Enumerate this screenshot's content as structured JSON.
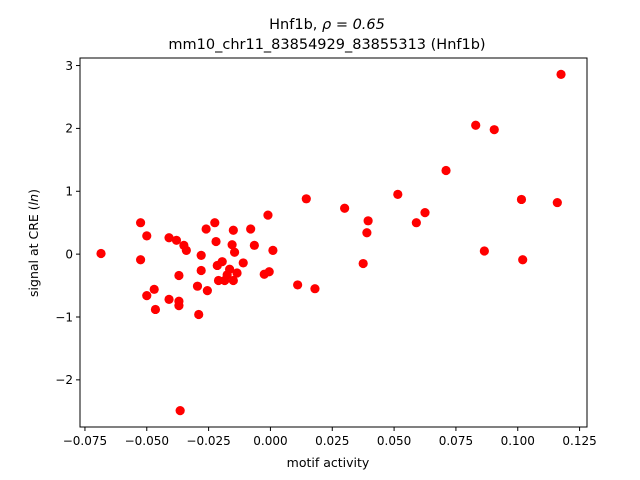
{
  "chart_data": {
    "type": "scatter",
    "title_line1": "Hnf1b, ",
    "title_rho": "ρ = 0.65",
    "title_line2": "mm10_chr11_83854929_83855313 (Hnf1b)",
    "xlabel": "motif activity",
    "ylabel_prefix": "signal at CRE (",
    "ylabel_italic": "ln",
    "ylabel_suffix": ")",
    "xlim": [
      -0.077,
      0.128
    ],
    "ylim": [
      -2.75,
      3.12
    ],
    "xticks": [
      {
        "value": -0.075,
        "label": "−0.075"
      },
      {
        "value": -0.05,
        "label": "−0.050"
      },
      {
        "value": -0.025,
        "label": "−0.025"
      },
      {
        "value": 0.0,
        "label": "0.000"
      },
      {
        "value": 0.025,
        "label": "0.025"
      },
      {
        "value": 0.05,
        "label": "0.050"
      },
      {
        "value": 0.075,
        "label": "0.075"
      },
      {
        "value": 0.1,
        "label": "0.100"
      },
      {
        "value": 0.125,
        "label": "0.125"
      }
    ],
    "yticks": [
      {
        "value": -2,
        "label": "−2"
      },
      {
        "value": -1,
        "label": "−1"
      },
      {
        "value": 0,
        "label": "0"
      },
      {
        "value": 1,
        "label": "1"
      },
      {
        "value": 2,
        "label": "2"
      },
      {
        "value": 3,
        "label": "3"
      }
    ],
    "marker_color": "#ff0000",
    "points": [
      {
        "x": -0.0685,
        "y": 0.01
      },
      {
        "x": -0.0525,
        "y": 0.5
      },
      {
        "x": -0.0525,
        "y": -0.09
      },
      {
        "x": -0.05,
        "y": 0.29
      },
      {
        "x": -0.05,
        "y": -0.66
      },
      {
        "x": -0.047,
        "y": -0.56
      },
      {
        "x": -0.0465,
        "y": -0.88
      },
      {
        "x": -0.041,
        "y": 0.26
      },
      {
        "x": -0.041,
        "y": -0.72
      },
      {
        "x": -0.038,
        "y": 0.22
      },
      {
        "x": -0.037,
        "y": -0.34
      },
      {
        "x": -0.037,
        "y": -0.75
      },
      {
        "x": -0.037,
        "y": -0.82
      },
      {
        "x": -0.0365,
        "y": -2.49
      },
      {
        "x": -0.035,
        "y": 0.14
      },
      {
        "x": -0.034,
        "y": 0.06
      },
      {
        "x": -0.0295,
        "y": -0.51
      },
      {
        "x": -0.029,
        "y": -0.96
      },
      {
        "x": -0.028,
        "y": -0.26
      },
      {
        "x": -0.028,
        "y": -0.02
      },
      {
        "x": -0.026,
        "y": 0.4
      },
      {
        "x": -0.0255,
        "y": -0.58
      },
      {
        "x": -0.0225,
        "y": 0.5
      },
      {
        "x": -0.022,
        "y": 0.2
      },
      {
        "x": -0.0215,
        "y": -0.18
      },
      {
        "x": -0.021,
        "y": -0.42
      },
      {
        "x": -0.0195,
        "y": -0.12
      },
      {
        "x": -0.0185,
        "y": -0.42
      },
      {
        "x": -0.0175,
        "y": -0.33
      },
      {
        "x": -0.0165,
        "y": -0.24
      },
      {
        "x": -0.0155,
        "y": 0.15
      },
      {
        "x": -0.015,
        "y": 0.38
      },
      {
        "x": -0.015,
        "y": -0.42
      },
      {
        "x": -0.0145,
        "y": 0.03
      },
      {
        "x": -0.0135,
        "y": -0.3
      },
      {
        "x": -0.011,
        "y": -0.14
      },
      {
        "x": -0.008,
        "y": 0.4
      },
      {
        "x": -0.0065,
        "y": 0.14
      },
      {
        "x": -0.0025,
        "y": -0.32
      },
      {
        "x": -0.001,
        "y": 0.62
      },
      {
        "x": -0.0005,
        "y": -0.28
      },
      {
        "x": 0.001,
        "y": 0.06
      },
      {
        "x": 0.011,
        "y": -0.49
      },
      {
        "x": 0.0145,
        "y": 0.88
      },
      {
        "x": 0.018,
        "y": -0.55
      },
      {
        "x": 0.03,
        "y": 0.73
      },
      {
        "x": 0.0375,
        "y": -0.15
      },
      {
        "x": 0.039,
        "y": 0.34
      },
      {
        "x": 0.0395,
        "y": 0.53
      },
      {
        "x": 0.0515,
        "y": 0.95
      },
      {
        "x": 0.059,
        "y": 0.5
      },
      {
        "x": 0.0625,
        "y": 0.66
      },
      {
        "x": 0.071,
        "y": 1.33
      },
      {
        "x": 0.083,
        "y": 2.05
      },
      {
        "x": 0.0865,
        "y": 0.05
      },
      {
        "x": 0.0905,
        "y": 1.98
      },
      {
        "x": 0.1015,
        "y": 0.87
      },
      {
        "x": 0.102,
        "y": -0.09
      },
      {
        "x": 0.116,
        "y": 0.82
      },
      {
        "x": 0.1175,
        "y": 2.86
      }
    ]
  }
}
